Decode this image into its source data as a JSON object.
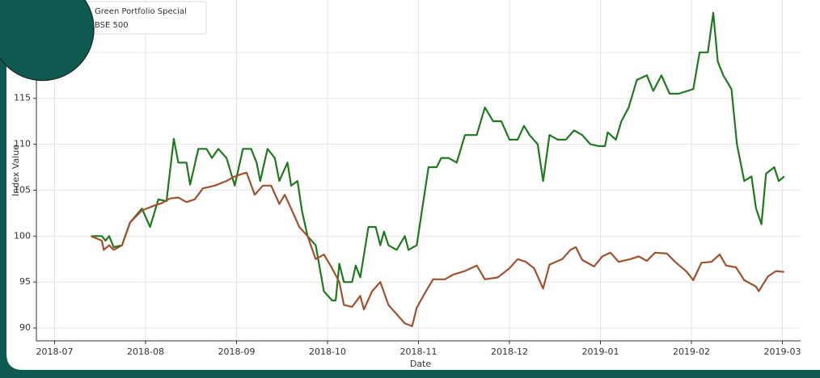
{
  "chart_data": {
    "type": "line",
    "xlabel": "Date",
    "ylabel": "Index Value",
    "xlim": [
      -0.2,
      8.2
    ],
    "ylim": [
      88.6,
      125.7
    ],
    "xticks": [
      {
        "value": 0,
        "label": "2018-07"
      },
      {
        "value": 1,
        "label": "2018-08"
      },
      {
        "value": 2,
        "label": "2018-09"
      },
      {
        "value": 3,
        "label": "2018-10"
      },
      {
        "value": 4,
        "label": "2018-11"
      },
      {
        "value": 5,
        "label": "2018-12"
      },
      {
        "value": 6,
        "label": "2019-01"
      },
      {
        "value": 7,
        "label": "2019-02"
      },
      {
        "value": 8,
        "label": "2019-03"
      }
    ],
    "yticks": [
      90,
      95,
      100,
      105,
      110,
      115,
      120
    ],
    "grid": true,
    "legend": "upper left",
    "series": [
      {
        "name": "Green Portfolio Special",
        "color": "#1f7a1f",
        "x": [
          0.4,
          0.52,
          0.56,
          0.6,
          0.65,
          0.74,
          0.83,
          0.96,
          1.05,
          1.14,
          1.23,
          1.31,
          1.36,
          1.45,
          1.49,
          1.58,
          1.67,
          1.73,
          1.8,
          1.89,
          1.98,
          2.07,
          2.16,
          2.22,
          2.26,
          2.34,
          2.42,
          2.47,
          2.56,
          2.6,
          2.67,
          2.72,
          2.78,
          2.87,
          2.96,
          3.05,
          3.09,
          3.13,
          3.18,
          3.27,
          3.31,
          3.36,
          3.45,
          3.53,
          3.58,
          3.62,
          3.67,
          3.76,
          3.85,
          3.89,
          3.98,
          4.11,
          4.2,
          4.25,
          4.33,
          4.42,
          4.51,
          4.64,
          4.73,
          4.82,
          4.91,
          5.0,
          5.09,
          5.16,
          5.22,
          5.31,
          5.37,
          5.44,
          5.53,
          5.62,
          5.71,
          5.8,
          5.89,
          5.98,
          6.05,
          6.08,
          6.17,
          6.23,
          6.31,
          6.4,
          6.51,
          6.58,
          6.67,
          6.76,
          6.86,
          7.02,
          7.09,
          7.18,
          7.24,
          7.29,
          7.35,
          7.44,
          7.5,
          7.58,
          7.66,
          7.71,
          7.77,
          7.82,
          7.91,
          7.96,
          8.02
        ],
        "values": [
          100,
          100,
          99.5,
          100,
          98.8,
          99,
          101.5,
          103,
          101,
          104,
          103.8,
          110.6,
          108,
          108,
          105.6,
          109.5,
          109.5,
          108.5,
          109.5,
          108.5,
          105.5,
          109.5,
          109.5,
          108,
          106,
          109.5,
          108.5,
          106,
          108,
          105.5,
          106,
          102.7,
          100,
          99,
          94,
          93,
          93,
          97,
          95,
          95,
          96.8,
          95.5,
          101,
          101,
          99,
          100.5,
          99,
          98.5,
          100,
          98.5,
          99,
          107.5,
          107.5,
          108.5,
          108.5,
          108,
          111,
          111,
          114,
          112.5,
          112.5,
          110.5,
          110.5,
          112,
          111,
          110,
          106,
          111,
          110.5,
          110.5,
          111.5,
          111,
          110,
          109.8,
          109.8,
          111.3,
          110.5,
          112.5,
          114,
          117,
          117.5,
          115.8,
          117.5,
          115.5,
          115.5,
          116,
          120,
          120,
          124.3,
          119,
          117.5,
          116,
          110,
          106,
          106.5,
          103,
          101.3,
          106.8,
          107.5,
          106,
          106.5
        ]
      },
      {
        "name": "BSE 500",
        "color": "#a0522d",
        "x": [
          0.4,
          0.52,
          0.54,
          0.6,
          0.65,
          0.74,
          0.83,
          0.96,
          1.09,
          1.18,
          1.27,
          1.36,
          1.45,
          1.54,
          1.63,
          1.76,
          1.89,
          1.98,
          2.07,
          2.11,
          2.2,
          2.29,
          2.38,
          2.47,
          2.53,
          2.6,
          2.69,
          2.78,
          2.87,
          2.96,
          3.05,
          3.13,
          3.18,
          3.27,
          3.36,
          3.4,
          3.49,
          3.58,
          3.67,
          3.76,
          3.85,
          3.93,
          3.98,
          4.07,
          4.16,
          4.29,
          4.38,
          4.51,
          4.64,
          4.73,
          4.87,
          5.0,
          5.09,
          5.18,
          5.27,
          5.37,
          5.44,
          5.58,
          5.67,
          5.73,
          5.8,
          5.93,
          6.02,
          6.11,
          6.2,
          6.33,
          6.42,
          6.51,
          6.6,
          6.73,
          6.82,
          6.95,
          7.02,
          7.11,
          7.22,
          7.31,
          7.38,
          7.49,
          7.58,
          7.71,
          7.74,
          7.84,
          7.93,
          8.02
        ],
        "values": [
          100,
          99.5,
          98.5,
          99,
          98.5,
          99,
          101.5,
          102.8,
          103.3,
          103.6,
          104.1,
          104.2,
          103.7,
          104,
          105.2,
          105.5,
          106,
          106.5,
          106.8,
          106.9,
          104.5,
          105.5,
          105.5,
          103.5,
          104.5,
          103,
          101,
          100,
          97.5,
          98,
          96.5,
          95,
          92.5,
          92.3,
          93.5,
          92,
          94,
          95,
          92.5,
          91.5,
          90.5,
          90.2,
          92.2,
          93.8,
          95.3,
          95.3,
          95.8,
          96.2,
          96.8,
          95.3,
          95.5,
          96.5,
          97.5,
          97.2,
          96.5,
          94.3,
          96.9,
          97.5,
          98.5,
          98.8,
          97.4,
          96.7,
          97.8,
          98.2,
          97.2,
          97.5,
          97.8,
          97.3,
          98.2,
          98.1,
          97.2,
          96.1,
          95.2,
          97.1,
          97.2,
          98,
          96.8,
          96.6,
          95.2,
          94.5,
          94,
          95.6,
          96.2,
          96.1
        ]
      }
    ]
  }
}
